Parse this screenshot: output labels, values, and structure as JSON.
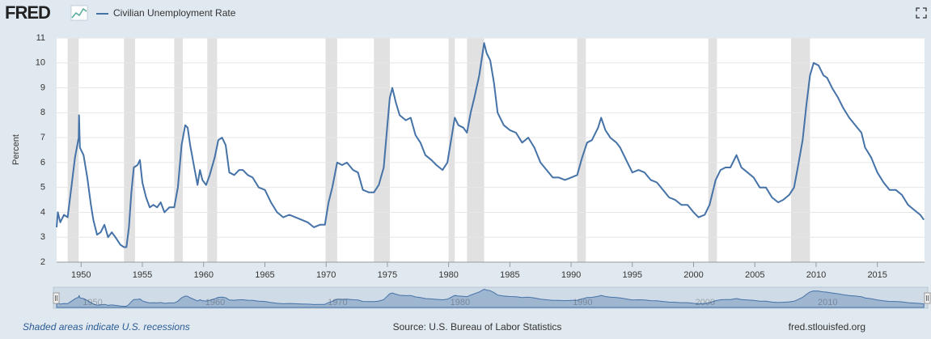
{
  "logo": "FRED",
  "chart_data": {
    "type": "line",
    "ylabel": "Percent",
    "x": [
      1948.0,
      1948.1,
      1948.3,
      1948.6,
      1948.9,
      1949.2,
      1949.5,
      1949.8,
      1949.83,
      1949.9,
      1950.2,
      1950.5,
      1950.8,
      1951.0,
      1951.3,
      1951.6,
      1951.9,
      1952.2,
      1952.5,
      1952.8,
      1953.2,
      1953.5,
      1953.7,
      1953.9,
      1954.1,
      1954.3,
      1954.6,
      1954.8,
      1955.0,
      1955.3,
      1955.6,
      1955.9,
      1956.2,
      1956.5,
      1956.8,
      1957.2,
      1957.6,
      1957.9,
      1958.2,
      1958.5,
      1958.7,
      1958.9,
      1959.2,
      1959.5,
      1959.7,
      1959.9,
      1960.2,
      1960.5,
      1960.9,
      1961.2,
      1961.5,
      1961.8,
      1962.1,
      1962.5,
      1962.9,
      1963.2,
      1963.6,
      1964.0,
      1964.5,
      1965.0,
      1965.5,
      1966.0,
      1966.5,
      1967.0,
      1967.5,
      1968.0,
      1968.5,
      1969.0,
      1969.5,
      1969.9,
      1970.2,
      1970.5,
      1970.9,
      1971.3,
      1971.7,
      1972.2,
      1972.6,
      1973.0,
      1973.5,
      1973.9,
      1974.3,
      1974.7,
      1974.95,
      1975.2,
      1975.4,
      1975.7,
      1976.0,
      1976.5,
      1976.9,
      1977.3,
      1977.7,
      1978.1,
      1978.6,
      1979.0,
      1979.5,
      1979.9,
      1980.2,
      1980.5,
      1980.8,
      1981.2,
      1981.5,
      1981.8,
      1982.1,
      1982.5,
      1982.9,
      1983.1,
      1983.4,
      1983.7,
      1984.0,
      1984.5,
      1985.0,
      1985.5,
      1986.0,
      1986.5,
      1987.0,
      1987.5,
      1988.0,
      1988.5,
      1989.0,
      1989.5,
      1990.0,
      1990.5,
      1990.9,
      1991.3,
      1991.7,
      1992.2,
      1992.45,
      1992.8,
      1993.2,
      1993.7,
      1994.0,
      1994.5,
      1995.0,
      1995.5,
      1996.0,
      1996.5,
      1997.0,
      1997.5,
      1998.0,
      1998.5,
      1999.0,
      1999.5,
      2000.0,
      2000.4,
      2000.9,
      2001.3,
      2001.8,
      2002.2,
      2002.6,
      2003.0,
      2003.5,
      2003.9,
      2004.4,
      2004.9,
      2005.4,
      2005.9,
      2006.4,
      2006.9,
      2007.3,
      2007.8,
      2008.2,
      2008.5,
      2008.9,
      2009.2,
      2009.5,
      2009.8,
      2010.2,
      2010.6,
      2010.9,
      2011.3,
      2011.8,
      2012.2,
      2012.7,
      2013.2,
      2013.7,
      2014.0,
      2014.5,
      2015.0,
      2015.5,
      2016.0,
      2016.5,
      2017.0,
      2017.5,
      2018.0,
      2018.5,
      2018.8
    ],
    "series": [
      {
        "name": "Civilian Unemployment Rate",
        "color": "#4572a7",
        "values": [
          3.4,
          4.0,
          3.6,
          3.9,
          3.8,
          5.0,
          6.2,
          7.0,
          7.9,
          6.6,
          6.3,
          5.4,
          4.3,
          3.7,
          3.1,
          3.2,
          3.5,
          3.0,
          3.2,
          3.0,
          2.7,
          2.6,
          2.6,
          3.4,
          4.8,
          5.8,
          5.9,
          6.1,
          5.2,
          4.6,
          4.2,
          4.3,
          4.2,
          4.4,
          4.0,
          4.2,
          4.2,
          5.0,
          6.7,
          7.5,
          7.4,
          6.7,
          5.9,
          5.1,
          5.7,
          5.3,
          5.1,
          5.5,
          6.2,
          6.9,
          7.0,
          6.7,
          5.6,
          5.5,
          5.7,
          5.7,
          5.5,
          5.4,
          5.0,
          4.9,
          4.4,
          4.0,
          3.8,
          3.9,
          3.8,
          3.7,
          3.6,
          3.4,
          3.5,
          3.5,
          4.4,
          5.0,
          6.0,
          5.9,
          6.0,
          5.7,
          5.6,
          4.9,
          4.8,
          4.8,
          5.1,
          5.8,
          7.2,
          8.6,
          9.0,
          8.4,
          7.9,
          7.7,
          7.8,
          7.1,
          6.8,
          6.3,
          6.1,
          5.9,
          5.7,
          6.0,
          6.9,
          7.8,
          7.5,
          7.4,
          7.2,
          8.0,
          8.6,
          9.5,
          10.8,
          10.4,
          10.1,
          9.2,
          8.0,
          7.5,
          7.3,
          7.2,
          6.8,
          7.0,
          6.6,
          6.0,
          5.7,
          5.4,
          5.4,
          5.3,
          5.4,
          5.5,
          6.2,
          6.8,
          6.9,
          7.4,
          7.8,
          7.3,
          7.0,
          6.8,
          6.6,
          6.1,
          5.6,
          5.7,
          5.6,
          5.3,
          5.2,
          4.9,
          4.6,
          4.5,
          4.3,
          4.3,
          4.0,
          3.8,
          3.9,
          4.3,
          5.3,
          5.7,
          5.8,
          5.8,
          6.3,
          5.8,
          5.6,
          5.4,
          5.0,
          5.0,
          4.6,
          4.4,
          4.5,
          4.7,
          5.0,
          5.8,
          6.9,
          8.3,
          9.5,
          10.0,
          9.9,
          9.5,
          9.4,
          9.0,
          8.6,
          8.2,
          7.8,
          7.5,
          7.2,
          6.6,
          6.2,
          5.6,
          5.2,
          4.9,
          4.9,
          4.7,
          4.3,
          4.1,
          3.9,
          3.7
        ]
      }
    ],
    "recessions": [
      [
        1948.9,
        1949.8
      ],
      [
        1953.5,
        1954.4
      ],
      [
        1957.6,
        1958.3
      ],
      [
        1960.3,
        1961.1
      ],
      [
        1969.95,
        1970.9
      ],
      [
        1973.9,
        1975.2
      ],
      [
        1980.0,
        1980.5
      ],
      [
        1981.5,
        1982.9
      ],
      [
        1990.5,
        1991.2
      ],
      [
        2001.2,
        2001.9
      ],
      [
        2007.95,
        2009.5
      ]
    ],
    "xlim": [
      1948,
      2018.85
    ],
    "ylim": [
      2,
      11
    ],
    "xticks": [
      1950,
      1955,
      1960,
      1965,
      1970,
      1975,
      1980,
      1985,
      1990,
      1995,
      2000,
      2005,
      2010,
      2015
    ],
    "yticks": [
      2,
      3,
      4,
      5,
      6,
      7,
      8,
      9,
      10,
      11
    ],
    "navigator_xticks": [
      1950,
      1960,
      1970,
      1980,
      1990,
      2000,
      2010
    ],
    "grid": true,
    "recession_note": "Shaded areas indicate U.S. recessions",
    "source": "Source: U.S. Bureau of Labor Statistics",
    "site": "fred.stlouisfed.org"
  }
}
